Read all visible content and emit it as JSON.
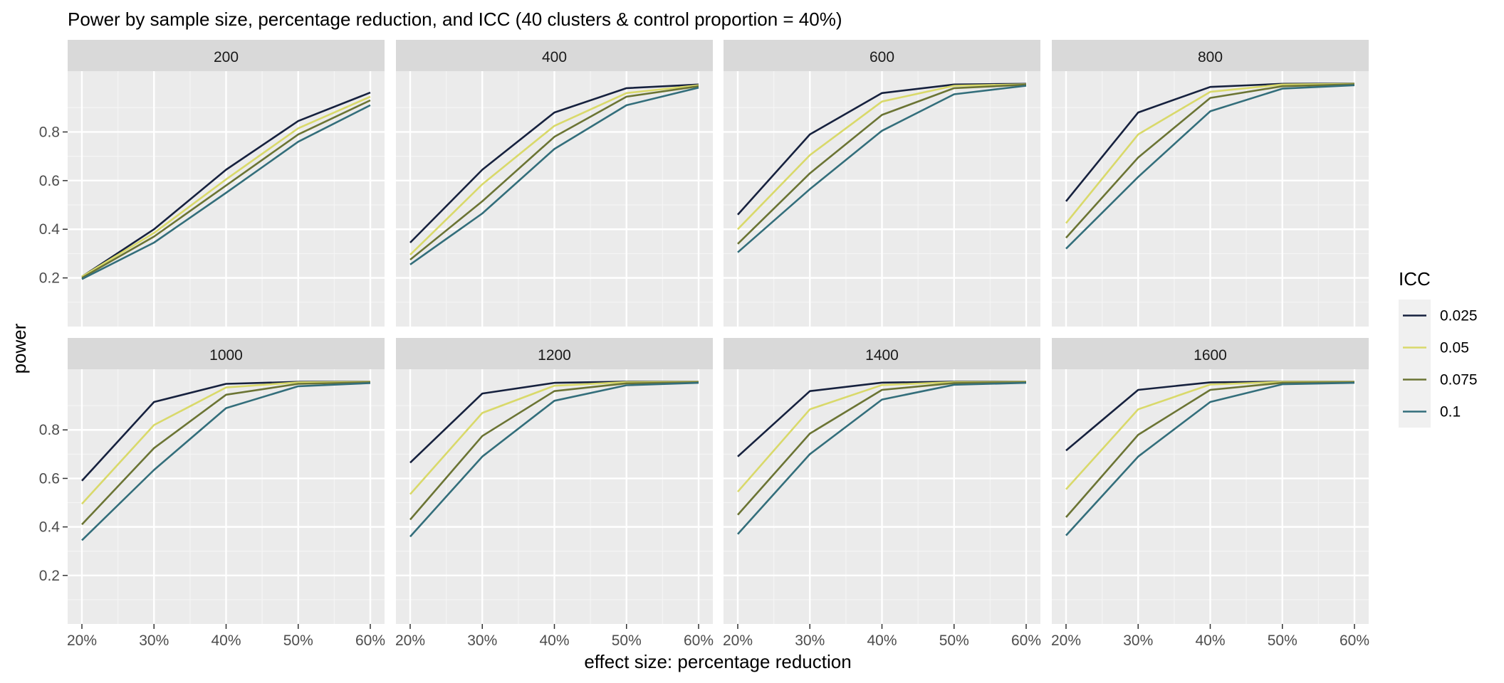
{
  "chart_data": {
    "type": "line",
    "title": "Power by sample size, percentage reduction, and ICC (40 clusters & control proportion = 40%)",
    "xlabel": "effect size: percentage reduction",
    "ylabel": "power",
    "x_categories": [
      "20%",
      "30%",
      "40%",
      "50%",
      "60%"
    ],
    "y_ticks": [
      "0.2",
      "0.4",
      "0.6",
      "0.8"
    ],
    "y_tick_values": [
      0.2,
      0.4,
      0.6,
      0.8
    ],
    "ylim": [
      0.0,
      1.05
    ],
    "legend": {
      "title": "ICC",
      "position": "right",
      "entries": [
        {
          "label": "0.025",
          "color": "#16213e"
        },
        {
          "label": "0.05",
          "color": "#d9d96a"
        },
        {
          "label": "0.075",
          "color": "#6b7434"
        },
        {
          "label": "0.1",
          "color": "#336e7b"
        }
      ]
    },
    "facets": [
      {
        "label": "200",
        "series": [
          [
            0.205,
            0.4,
            0.645,
            0.845,
            0.962
          ],
          [
            0.205,
            0.385,
            0.605,
            0.815,
            0.945
          ],
          [
            0.2,
            0.37,
            0.58,
            0.79,
            0.93
          ],
          [
            0.195,
            0.345,
            0.55,
            0.76,
            0.91
          ]
        ]
      },
      {
        "label": "400",
        "series": [
          [
            0.345,
            0.645,
            0.88,
            0.98,
            0.995
          ],
          [
            0.295,
            0.585,
            0.825,
            0.96,
            0.992
          ],
          [
            0.275,
            0.515,
            0.78,
            0.945,
            0.988
          ],
          [
            0.255,
            0.465,
            0.73,
            0.91,
            0.982
          ]
        ]
      },
      {
        "label": "600",
        "series": [
          [
            0.46,
            0.79,
            0.96,
            0.995,
            0.998
          ],
          [
            0.4,
            0.705,
            0.925,
            0.99,
            0.996
          ],
          [
            0.34,
            0.63,
            0.87,
            0.98,
            0.994
          ],
          [
            0.305,
            0.565,
            0.805,
            0.955,
            0.99
          ]
        ]
      },
      {
        "label": "800",
        "series": [
          [
            0.515,
            0.88,
            0.985,
            0.998,
            0.999
          ],
          [
            0.425,
            0.79,
            0.965,
            0.995,
            0.998
          ],
          [
            0.365,
            0.695,
            0.94,
            0.988,
            0.996
          ],
          [
            0.32,
            0.615,
            0.885,
            0.978,
            0.992
          ]
        ]
      },
      {
        "label": "1000",
        "series": [
          [
            0.59,
            0.915,
            0.99,
            0.998,
            0.999
          ],
          [
            0.495,
            0.82,
            0.975,
            0.996,
            0.998
          ],
          [
            0.41,
            0.725,
            0.945,
            0.99,
            0.996
          ],
          [
            0.345,
            0.635,
            0.89,
            0.98,
            0.993
          ]
        ]
      },
      {
        "label": "1200",
        "series": [
          [
            0.665,
            0.95,
            0.994,
            0.999,
            0.999
          ],
          [
            0.535,
            0.87,
            0.982,
            0.997,
            0.998
          ],
          [
            0.43,
            0.775,
            0.96,
            0.992,
            0.996
          ],
          [
            0.36,
            0.69,
            0.92,
            0.984,
            0.994
          ]
        ]
      },
      {
        "label": "1400",
        "series": [
          [
            0.69,
            0.96,
            0.995,
            0.999,
            0.999
          ],
          [
            0.545,
            0.885,
            0.985,
            0.997,
            0.998
          ],
          [
            0.45,
            0.785,
            0.965,
            0.993,
            0.996
          ],
          [
            0.37,
            0.7,
            0.925,
            0.986,
            0.994
          ]
        ]
      },
      {
        "label": "1600",
        "series": [
          [
            0.715,
            0.965,
            0.996,
            0.999,
            0.999
          ],
          [
            0.555,
            0.885,
            0.987,
            0.998,
            0.998
          ],
          [
            0.44,
            0.78,
            0.965,
            0.994,
            0.996
          ],
          [
            0.365,
            0.69,
            0.915,
            0.988,
            0.994
          ]
        ]
      }
    ]
  }
}
